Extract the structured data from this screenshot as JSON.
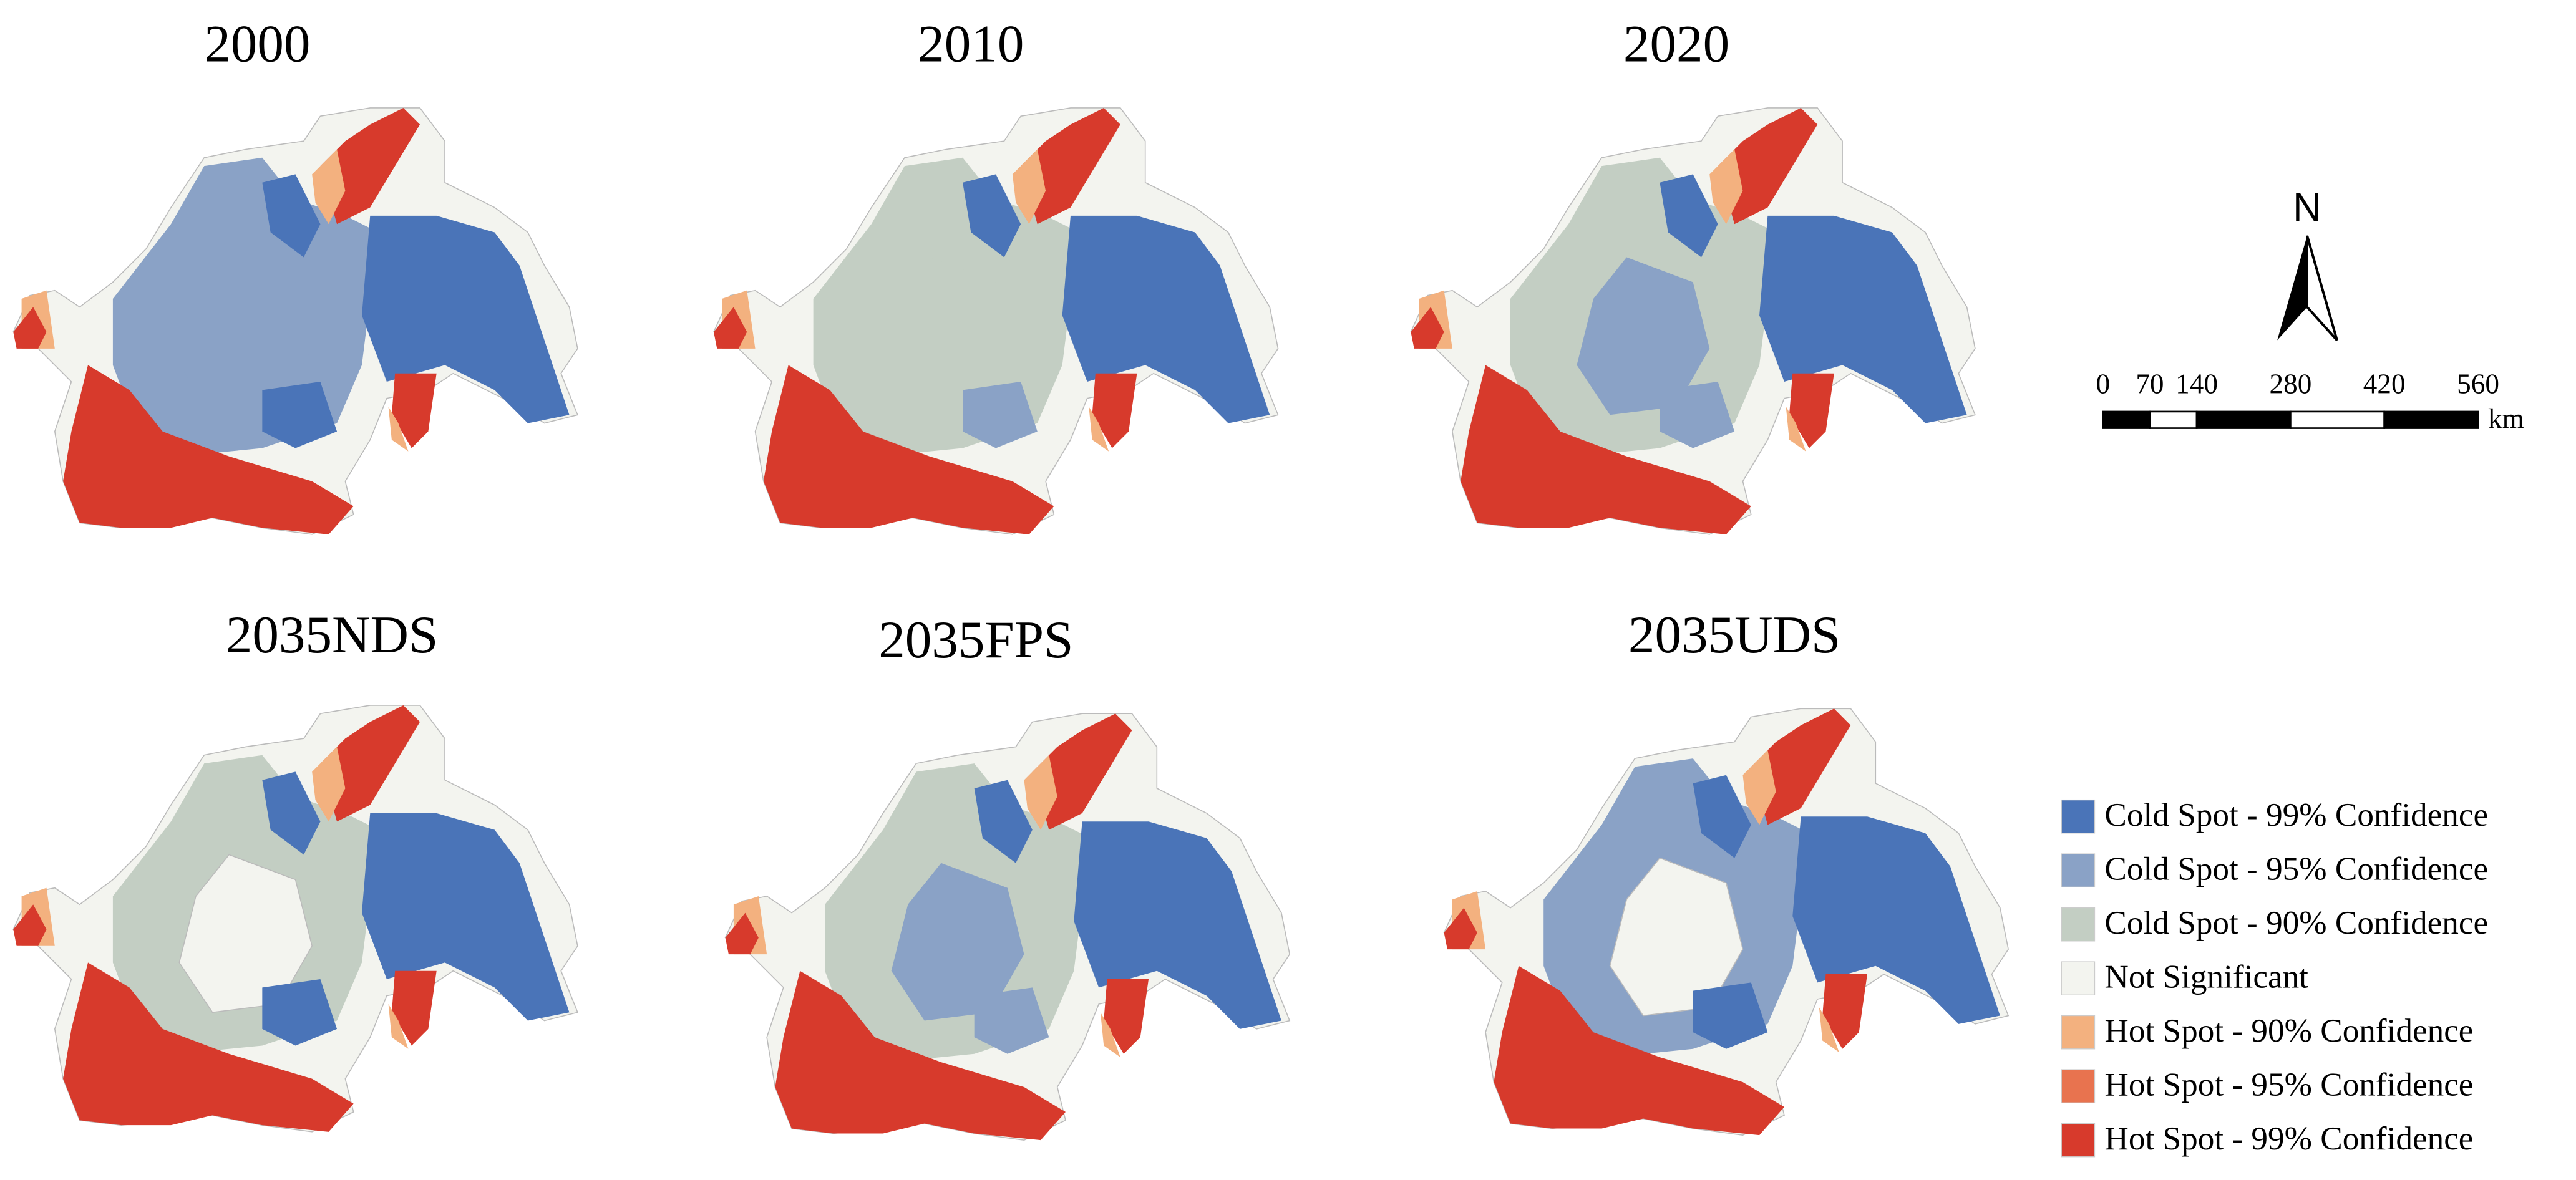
{
  "panels": [
    {
      "title": "2000"
    },
    {
      "title": "2010"
    },
    {
      "title": "2020"
    },
    {
      "title": "2035NDS"
    },
    {
      "title": "2035FPS"
    },
    {
      "title": "2035UDS"
    }
  ],
  "north_arrow": {
    "label": "N"
  },
  "scale_bar": {
    "ticks": [
      0,
      70,
      140,
      280,
      420,
      560
    ],
    "unit": "km"
  },
  "legend": [
    {
      "label": "Cold Spot - 99% Confidence",
      "color": "#4a74b8"
    },
    {
      "label": "Cold Spot - 95% Confidence",
      "color": "#8aa2c6"
    },
    {
      "label": "Cold Spot - 90% Confidence",
      "color": "#c3cec3"
    },
    {
      "label": "Not Significant",
      "color": "#f3f4ef"
    },
    {
      "label": "Hot Spot - 90% Confidence",
      "color": "#f3b17f"
    },
    {
      "label": "Hot Spot - 95% Confidence",
      "color": "#e8734f"
    },
    {
      "label": "Hot Spot - 99% Confidence",
      "color": "#d73a2c"
    }
  ]
}
